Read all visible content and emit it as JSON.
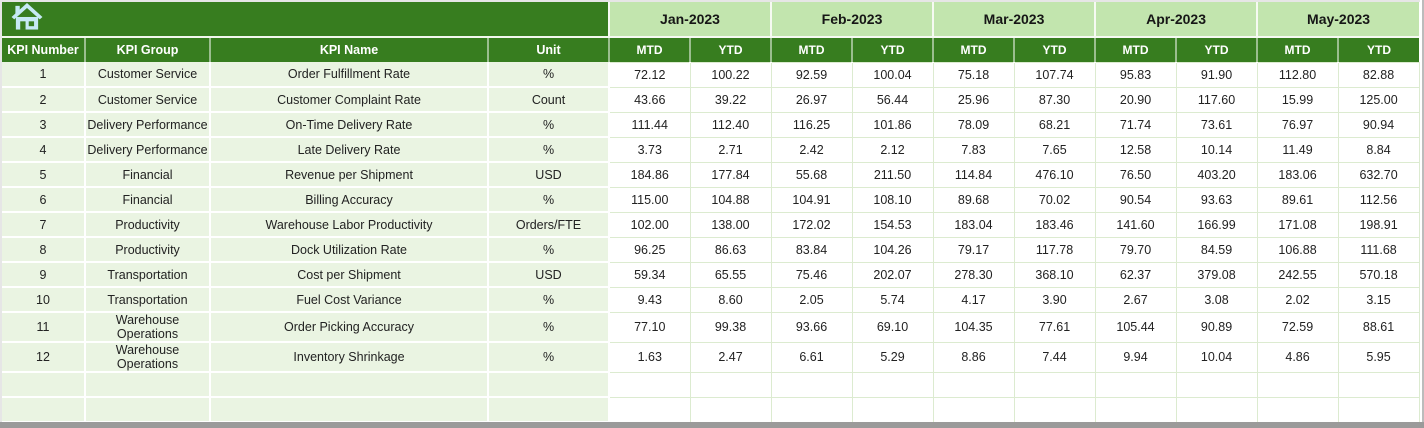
{
  "table": {
    "months": [
      "Jan-2023",
      "Feb-2023",
      "Mar-2023",
      "Apr-2023",
      "May-2023"
    ],
    "sub_headers": [
      "MTD",
      "YTD"
    ],
    "column_headers": [
      "KPI Number",
      "KPI Group",
      "KPI Name",
      "Unit"
    ],
    "rows": [
      {
        "kpi_number": "1",
        "kpi_group": "Customer Service",
        "kpi_name": "Order Fulfillment Rate",
        "unit": "%",
        "values": [
          "72.12",
          "100.22",
          "92.59",
          "100.04",
          "75.18",
          "107.74",
          "95.83",
          "91.90",
          "112.80",
          "82.88"
        ]
      },
      {
        "kpi_number": "2",
        "kpi_group": "Customer Service",
        "kpi_name": "Customer Complaint Rate",
        "unit": "Count",
        "values": [
          "43.66",
          "39.22",
          "26.97",
          "56.44",
          "25.96",
          "87.30",
          "20.90",
          "117.60",
          "15.99",
          "125.00"
        ]
      },
      {
        "kpi_number": "3",
        "kpi_group": "Delivery Performance",
        "kpi_name": "On-Time Delivery Rate",
        "unit": "%",
        "values": [
          "111.44",
          "112.40",
          "116.25",
          "101.86",
          "78.09",
          "68.21",
          "71.74",
          "73.61",
          "76.97",
          "90.94"
        ]
      },
      {
        "kpi_number": "4",
        "kpi_group": "Delivery Performance",
        "kpi_name": "Late Delivery Rate",
        "unit": "%",
        "values": [
          "3.73",
          "2.71",
          "2.42",
          "2.12",
          "7.83",
          "7.65",
          "12.58",
          "10.14",
          "11.49",
          "8.84"
        ]
      },
      {
        "kpi_number": "5",
        "kpi_group": "Financial",
        "kpi_name": "Revenue per Shipment",
        "unit": "USD",
        "values": [
          "184.86",
          "177.84",
          "55.68",
          "211.50",
          "114.84",
          "476.10",
          "76.50",
          "403.20",
          "183.06",
          "632.70"
        ]
      },
      {
        "kpi_number": "6",
        "kpi_group": "Financial",
        "kpi_name": "Billing Accuracy",
        "unit": "%",
        "values": [
          "115.00",
          "104.88",
          "104.91",
          "108.10",
          "89.68",
          "70.02",
          "90.54",
          "93.63",
          "89.61",
          "112.56"
        ]
      },
      {
        "kpi_number": "7",
        "kpi_group": "Productivity",
        "kpi_name": "Warehouse Labor Productivity",
        "unit": "Orders/FTE",
        "values": [
          "102.00",
          "138.00",
          "172.02",
          "154.53",
          "183.04",
          "183.46",
          "141.60",
          "166.99",
          "171.08",
          "198.91"
        ]
      },
      {
        "kpi_number": "8",
        "kpi_group": "Productivity",
        "kpi_name": "Dock Utilization Rate",
        "unit": "%",
        "values": [
          "96.25",
          "86.63",
          "83.84",
          "104.26",
          "79.17",
          "117.78",
          "79.70",
          "84.59",
          "106.88",
          "111.68"
        ]
      },
      {
        "kpi_number": "9",
        "kpi_group": "Transportation",
        "kpi_name": "Cost per Shipment",
        "unit": "USD",
        "values": [
          "59.34",
          "65.55",
          "75.46",
          "202.07",
          "278.30",
          "368.10",
          "62.37",
          "379.08",
          "242.55",
          "570.18"
        ]
      },
      {
        "kpi_number": "10",
        "kpi_group": "Transportation",
        "kpi_name": "Fuel Cost Variance",
        "unit": "%",
        "values": [
          "9.43",
          "8.60",
          "2.05",
          "5.74",
          "4.17",
          "3.90",
          "2.67",
          "3.08",
          "2.02",
          "3.15"
        ]
      },
      {
        "kpi_number": "11",
        "kpi_group": "Warehouse Operations",
        "kpi_name": "Order Picking Accuracy",
        "unit": "%",
        "values": [
          "77.10",
          "99.38",
          "93.66",
          "69.10",
          "104.35",
          "77.61",
          "105.44",
          "90.89",
          "72.59",
          "88.61"
        ]
      },
      {
        "kpi_number": "12",
        "kpi_group": "Warehouse Operations",
        "kpi_name": "Inventory Shrinkage",
        "unit": "%",
        "values": [
          "1.63",
          "2.47",
          "6.61",
          "5.29",
          "8.86",
          "7.44",
          "9.94",
          "10.04",
          "4.86",
          "5.95"
        ]
      }
    ],
    "empty_rows": 2
  },
  "icons": {
    "home": "home-icon"
  },
  "colors": {
    "header_green": "#377d1f",
    "month_band_green": "#c2e5ae",
    "row_label_green": "#eaf4e2",
    "grid_line_green": "#dcebd0",
    "home_icon_blue": "#c6e9f4",
    "chrome_gray": "#9a9a9a"
  }
}
